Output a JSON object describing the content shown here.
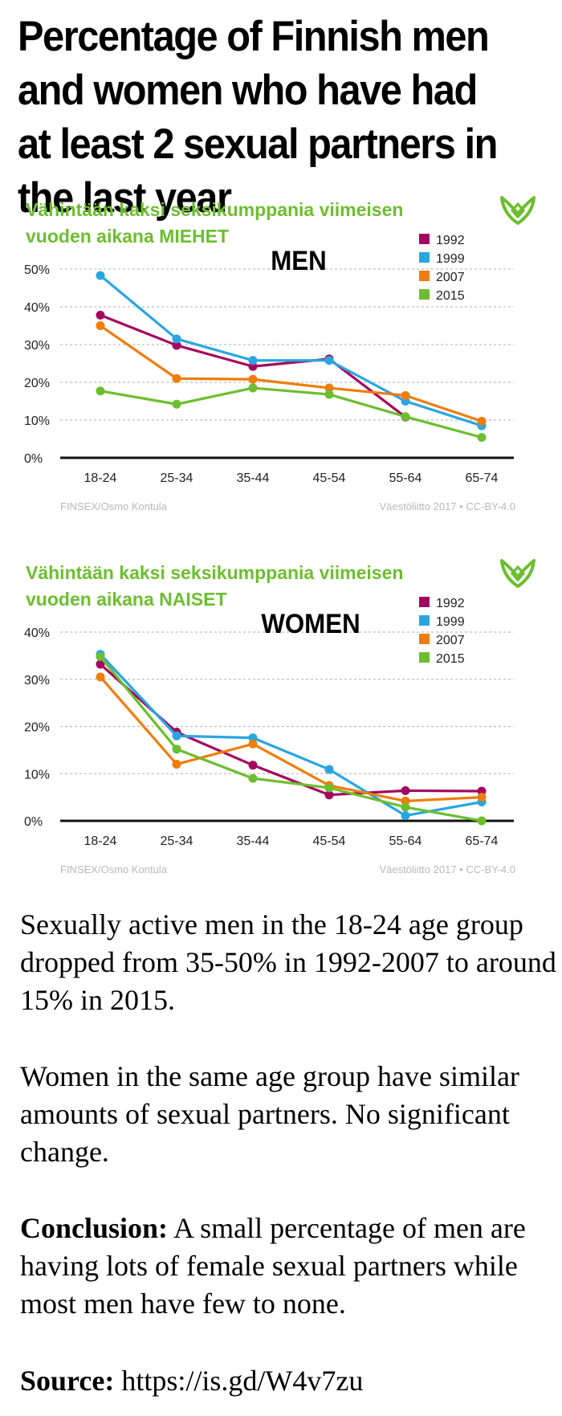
{
  "title": "Percentage of Finnish men and women who have had at least 2 sexual partners in the last year",
  "colors": {
    "1992": "#a4075f",
    "1999": "#29a6e2",
    "2007": "#ee7d0b",
    "2015": "#6dbe2f",
    "header": "#6dbe2f",
    "footer": "#b9b9b9"
  },
  "logo_icon": "vaestoliitto-leaf-logo-icon",
  "chart_data": [
    {
      "type": "line",
      "title": "Vähintään kaksi seksikumppania viimeisen vuoden aikana MIEHET",
      "title_lines": [
        "Vähintään kaksi seksikumppania viimeisen",
        "vuoden aikana MIEHET"
      ],
      "annotation": "MEN",
      "categories": [
        "18-24",
        "25-34",
        "35-44",
        "45-54",
        "55-64",
        "65-74"
      ],
      "yticks": [
        "0%",
        "10%",
        "20%",
        "30%",
        "40%",
        "50%"
      ],
      "ylim": [
        0,
        50
      ],
      "grid": true,
      "legend": "top-right",
      "series": [
        {
          "name": "1992",
          "values": [
            37.8,
            29.8,
            24.2,
            26.2,
            10.8,
            null
          ]
        },
        {
          "name": "1999",
          "values": [
            48.3,
            31.5,
            25.8,
            25.8,
            15.0,
            8.5
          ]
        },
        {
          "name": "2007",
          "values": [
            35.0,
            21.0,
            20.8,
            18.5,
            16.5,
            9.7
          ]
        },
        {
          "name": "2015",
          "values": [
            17.7,
            14.2,
            18.5,
            16.8,
            10.9,
            5.4
          ]
        }
      ],
      "source_left": "FINSEX/Osmo Kontula",
      "source_right": "Väestöliitto 2017 • CC-BY-4.0"
    },
    {
      "type": "line",
      "title": "Vähintään kaksi seksikumppania viimeisen vuoden aikana NAISET",
      "title_lines": [
        "Vähintään kaksi seksikumppania viimeisen",
        "vuoden aikana NAISET"
      ],
      "annotation": "WOMEN",
      "categories": [
        "18-24",
        "25-34",
        "35-44",
        "45-54",
        "55-64",
        "65-74"
      ],
      "yticks": [
        "0%",
        "10%",
        "20%",
        "30%",
        "40%"
      ],
      "ylim": [
        0,
        40
      ],
      "grid": true,
      "legend": "top-right",
      "series": [
        {
          "name": "1992",
          "values": [
            33.2,
            18.8,
            11.8,
            5.5,
            6.4,
            6.3
          ]
        },
        {
          "name": "1999",
          "values": [
            35.3,
            18.0,
            17.6,
            10.9,
            1.1,
            4.0
          ]
        },
        {
          "name": "2007",
          "values": [
            30.5,
            12.0,
            16.3,
            7.5,
            4.2,
            5.0
          ]
        },
        {
          "name": "2015",
          "values": [
            34.8,
            15.2,
            9.0,
            7.0,
            2.9,
            0.0
          ]
        }
      ],
      "source_left": "FINSEX/Osmo Kontula",
      "source_right": "Väestöliitto 2017 • CC-BY-4.0"
    }
  ],
  "text": {
    "p1": "Sexually active men in the 18-24 age group dropped from 35-50% in 1992-2007 to around 15% in 2015.",
    "p2": "Women in the same age group have similar amounts of sexual partners. No significant change.",
    "conclusion_label": "Conclusion:",
    "conclusion_text": " A small percentage of men are having lots of female sexual partners while most men have few to none.",
    "source_label": "Source:",
    "source_text": " https://is.gd/W4v7zu"
  }
}
